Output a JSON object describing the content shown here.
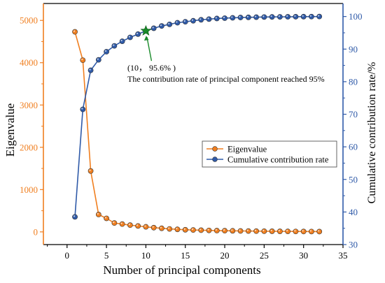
{
  "chart_data": {
    "type": "line",
    "xlabel": "Number of principal components",
    "ylabel_left": "Eigenvalue",
    "ylabel_right": "Cumulative contribution rate/%",
    "xlim": [
      -3,
      35
    ],
    "ylim_left": [
      -300,
      5400
    ],
    "ylim_right": [
      30,
      104
    ],
    "x_ticks": [
      0,
      5,
      10,
      15,
      20,
      25,
      30,
      35
    ],
    "y_ticks_left": [
      0,
      1000,
      2000,
      3000,
      4000,
      5000
    ],
    "y_ticks_right": [
      30,
      40,
      50,
      60,
      70,
      80,
      90,
      100
    ],
    "legend_position": "center-right",
    "series": [
      {
        "name": "Eigenvalue",
        "axis": "left",
        "color": "#f07f20",
        "x": [
          1,
          2,
          3,
          4,
          5,
          6,
          7,
          8,
          9,
          10,
          11,
          12,
          13,
          14,
          15,
          16,
          17,
          18,
          19,
          20,
          21,
          22,
          23,
          24,
          25,
          26,
          27,
          28,
          29,
          30,
          31,
          32
        ],
        "values": [
          4730,
          4060,
          1440,
          410,
          320,
          210,
          185,
          160,
          140,
          120,
          100,
          85,
          70,
          60,
          50,
          45,
          40,
          35,
          30,
          28,
          25,
          22,
          20,
          18,
          16,
          15,
          13,
          12,
          10,
          9,
          8,
          7
        ]
      },
      {
        "name": "Cumulative contribution rate",
        "axis": "right",
        "color": "#2f5aa8",
        "x": [
          1,
          2,
          3,
          4,
          5,
          6,
          7,
          8,
          9,
          10,
          11,
          12,
          13,
          14,
          15,
          16,
          17,
          18,
          19,
          20,
          21,
          22,
          23,
          24,
          25,
          26,
          27,
          28,
          29,
          30,
          31,
          32
        ],
        "values": [
          38.5,
          71.5,
          83.5,
          86.7,
          89.2,
          91,
          92.4,
          93.6,
          94.6,
          95.6,
          96.4,
          97.1,
          97.6,
          98.1,
          98.4,
          98.7,
          99,
          99.2,
          99.4,
          99.5,
          99.6,
          99.7,
          99.75,
          99.8,
          99.85,
          99.88,
          99.9,
          99.92,
          99.94,
          99.96,
          99.98,
          100
        ]
      }
    ],
    "annotation": {
      "point_x": 10,
      "point_y": 95.6,
      "axis": "right",
      "marker": "star",
      "color": "#1a8a2a",
      "label_line1": "(10， 95.6% )",
      "label_line2": "The contribution rate of principal component reached 95%"
    }
  }
}
